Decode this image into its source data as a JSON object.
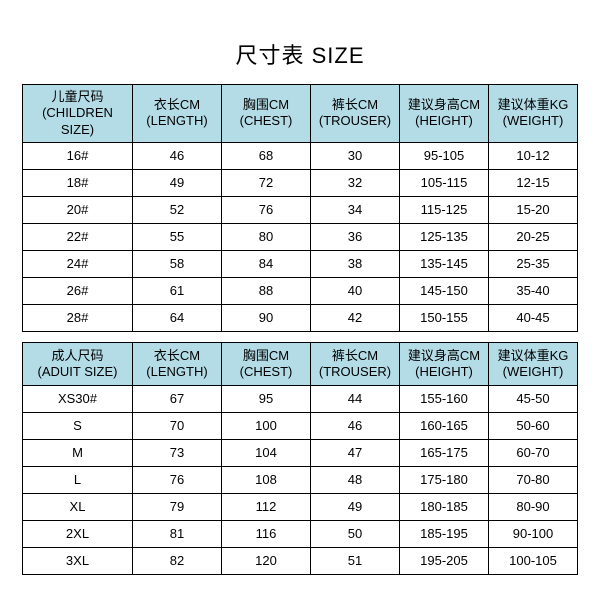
{
  "title": "尺寸表 SIZE",
  "children": {
    "headers": {
      "size_cn": "儿童尺码",
      "size_en": "(CHILDREN SIZE)",
      "length_cn": "衣长CM",
      "length_en": "(LENGTH)",
      "chest_cn": "胸围CM",
      "chest_en": "(CHEST)",
      "trouser_cn": "裤长CM",
      "trouser_en": "(TROUSER)",
      "height_cn": "建议身高CM",
      "height_en": "(HEIGHT)",
      "weight_cn": "建议体重KG",
      "weight_en": "(WEIGHT)"
    },
    "rows": [
      {
        "size": "16#",
        "length": "46",
        "chest": "68",
        "trouser": "30",
        "height": "95-105",
        "weight": "10-12"
      },
      {
        "size": "18#",
        "length": "49",
        "chest": "72",
        "trouser": "32",
        "height": "105-115",
        "weight": "12-15"
      },
      {
        "size": "20#",
        "length": "52",
        "chest": "76",
        "trouser": "34",
        "height": "115-125",
        "weight": "15-20"
      },
      {
        "size": "22#",
        "length": "55",
        "chest": "80",
        "trouser": "36",
        "height": "125-135",
        "weight": "20-25"
      },
      {
        "size": "24#",
        "length": "58",
        "chest": "84",
        "trouser": "38",
        "height": "135-145",
        "weight": "25-35"
      },
      {
        "size": "26#",
        "length": "61",
        "chest": "88",
        "trouser": "40",
        "height": "145-150",
        "weight": "35-40"
      },
      {
        "size": "28#",
        "length": "64",
        "chest": "90",
        "trouser": "42",
        "height": "150-155",
        "weight": "40-45"
      }
    ]
  },
  "adult": {
    "headers": {
      "size_cn": "成人尺码",
      "size_en": "(ADUIT SIZE)",
      "length_cn": "衣长CM",
      "length_en": "(LENGTH)",
      "chest_cn": "胸围CM",
      "chest_en": "(CHEST)",
      "trouser_cn": "裤长CM",
      "trouser_en": "(TROUSER)",
      "height_cn": "建议身高CM",
      "height_en": "(HEIGHT)",
      "weight_cn": "建议体重KG",
      "weight_en": "(WEIGHT)"
    },
    "rows": [
      {
        "size": "XS30#",
        "length": "67",
        "chest": "95",
        "trouser": "44",
        "height": "155-160",
        "weight": "45-50"
      },
      {
        "size": "S",
        "length": "70",
        "chest": "100",
        "trouser": "46",
        "height": "160-165",
        "weight": "50-60"
      },
      {
        "size": "M",
        "length": "73",
        "chest": "104",
        "trouser": "47",
        "height": "165-175",
        "weight": "60-70"
      },
      {
        "size": "L",
        "length": "76",
        "chest": "108",
        "trouser": "48",
        "height": "175-180",
        "weight": "70-80"
      },
      {
        "size": "XL",
        "length": "79",
        "chest": "112",
        "trouser": "49",
        "height": "180-185",
        "weight": "80-90"
      },
      {
        "size": "2XL",
        "length": "81",
        "chest": "116",
        "trouser": "50",
        "height": "185-195",
        "weight": "90-100"
      },
      {
        "size": "3XL",
        "length": "82",
        "chest": "120",
        "trouser": "51",
        "height": "195-205",
        "weight": "100-105"
      }
    ]
  },
  "style": {
    "header_bg": "#b4dce7",
    "border_color": "#000000",
    "background": "#ffffff",
    "title_fontsize": 22,
    "cell_fontsize": 13
  }
}
